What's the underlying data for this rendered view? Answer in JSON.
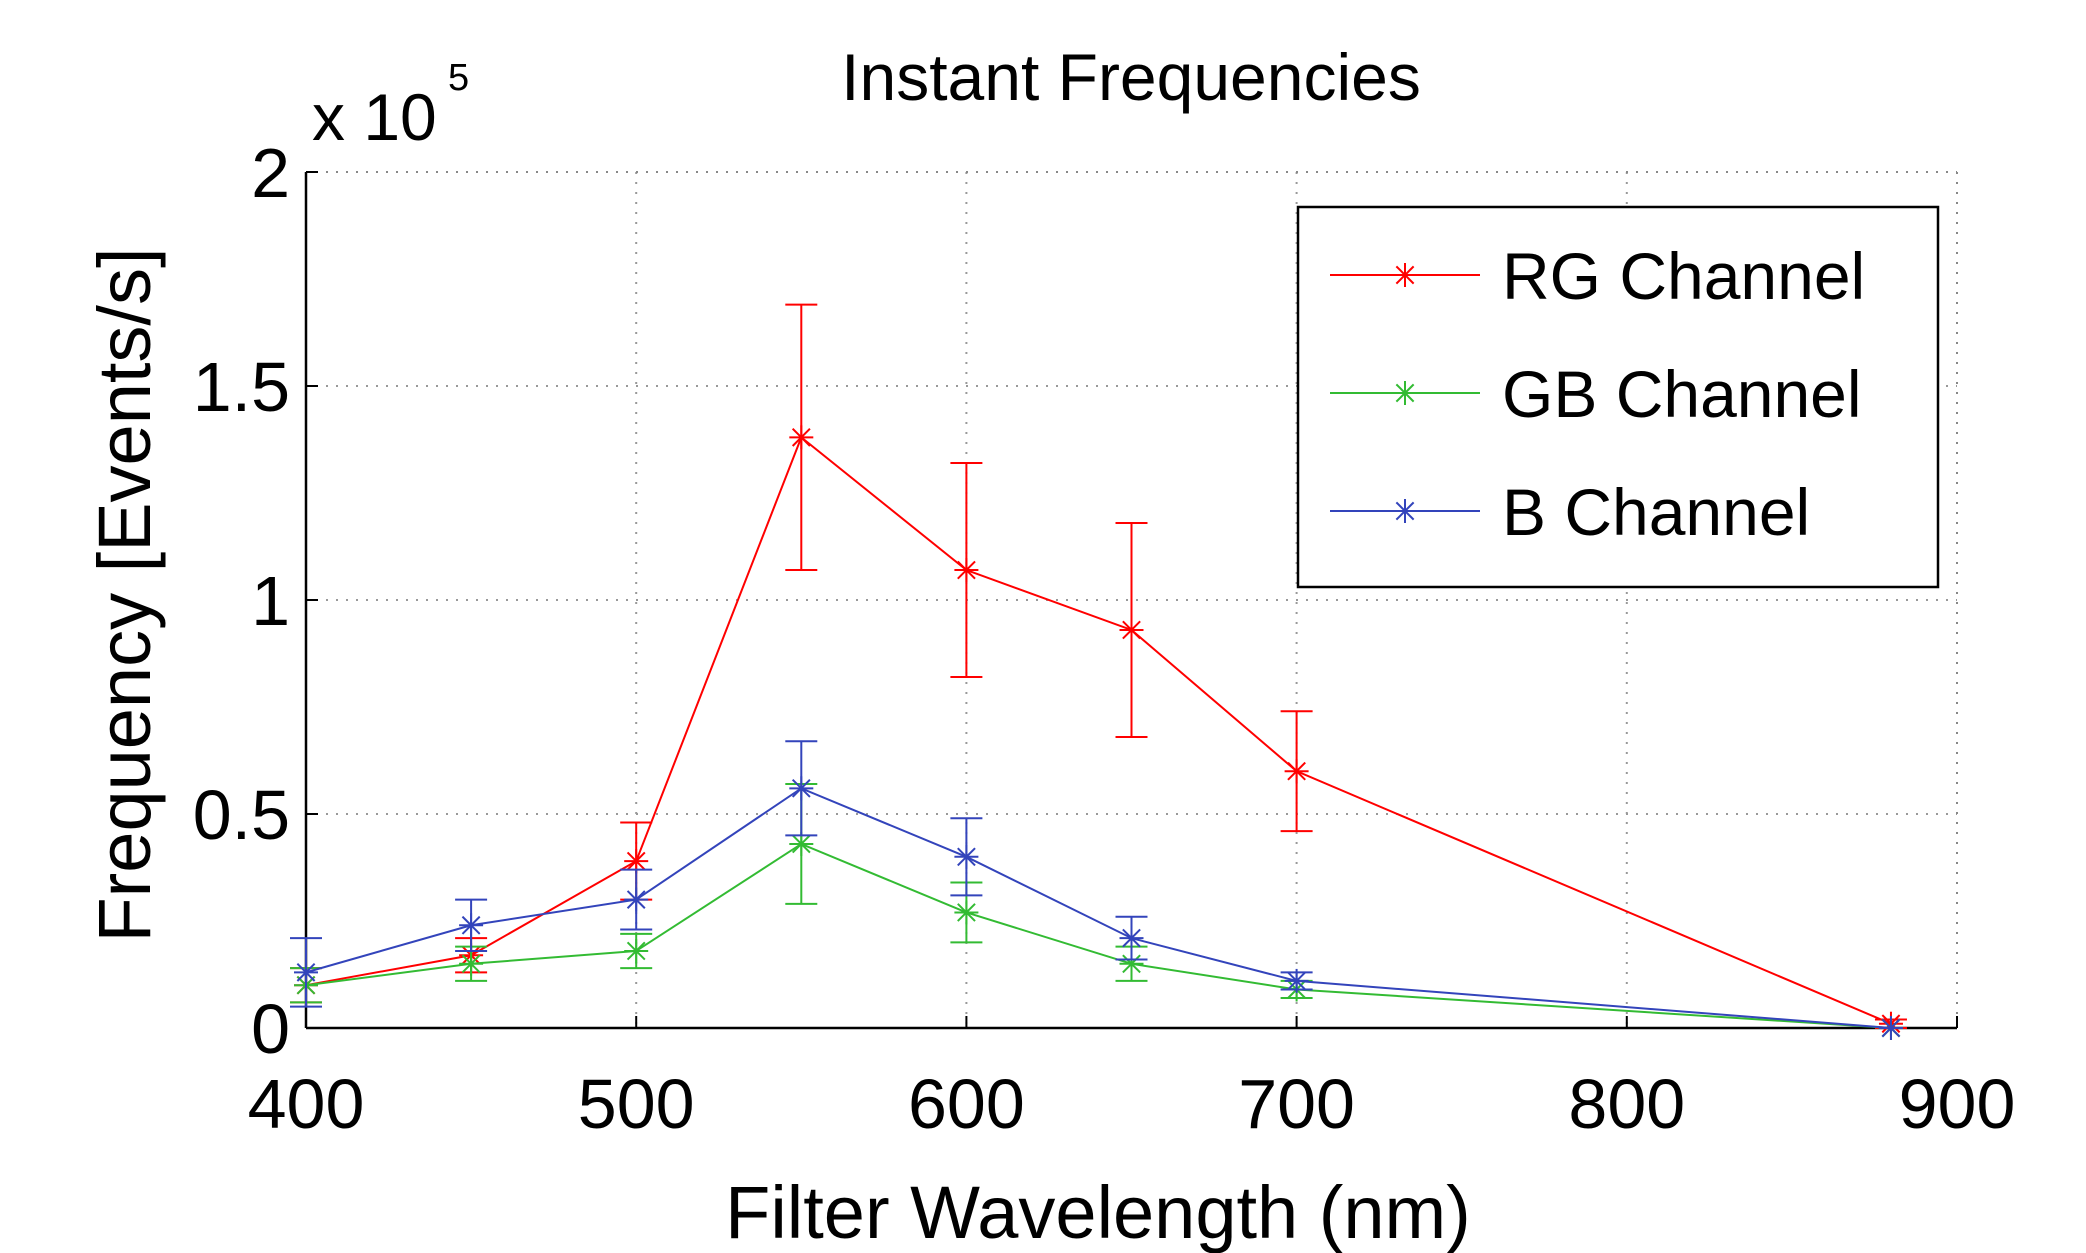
{
  "chart_data": {
    "type": "line",
    "title": "Instant Frequencies",
    "xlabel": "Filter Wavelength (nm)",
    "ylabel": "Frequency [Events/s]",
    "y_multiplier_text": "x 10",
    "y_multiplier_exponent": "5",
    "xlim": [
      400,
      900
    ],
    "ylim": [
      0,
      2
    ],
    "x_ticks": [
      400,
      500,
      600,
      700,
      800,
      900
    ],
    "y_ticks": [
      0,
      0.5,
      1,
      1.5,
      2
    ],
    "x_tick_labels": [
      "400",
      "500",
      "600",
      "700",
      "800",
      "900"
    ],
    "y_tick_labels": [
      "0",
      "0.5",
      "1",
      "1.5",
      "2"
    ],
    "grid": true,
    "legend_position": "top-right",
    "x": [
      400,
      450,
      500,
      550,
      600,
      650,
      700,
      880
    ],
    "series": [
      {
        "name": "RG Channel",
        "color": "#ff0000",
        "marker": "asterisk",
        "values": [
          0.1,
          0.17,
          0.39,
          1.38,
          1.07,
          0.93,
          0.6,
          0.01
        ],
        "error": [
          0.04,
          0.04,
          0.09,
          0.31,
          0.25,
          0.25,
          0.14,
          0.01
        ]
      },
      {
        "name": "GB Channel",
        "color": "#33bb33",
        "marker": "asterisk",
        "values": [
          0.1,
          0.15,
          0.18,
          0.43,
          0.27,
          0.15,
          0.09,
          0.0
        ],
        "error": [
          0.04,
          0.04,
          0.04,
          0.14,
          0.07,
          0.04,
          0.02,
          0.0
        ]
      },
      {
        "name": "B Channel",
        "color": "#3344bb",
        "marker": "asterisk",
        "values": [
          0.13,
          0.24,
          0.3,
          0.56,
          0.4,
          0.21,
          0.11,
          0.0
        ],
        "error": [
          0.08,
          0.06,
          0.07,
          0.11,
          0.09,
          0.05,
          0.02,
          0.0
        ]
      }
    ]
  }
}
